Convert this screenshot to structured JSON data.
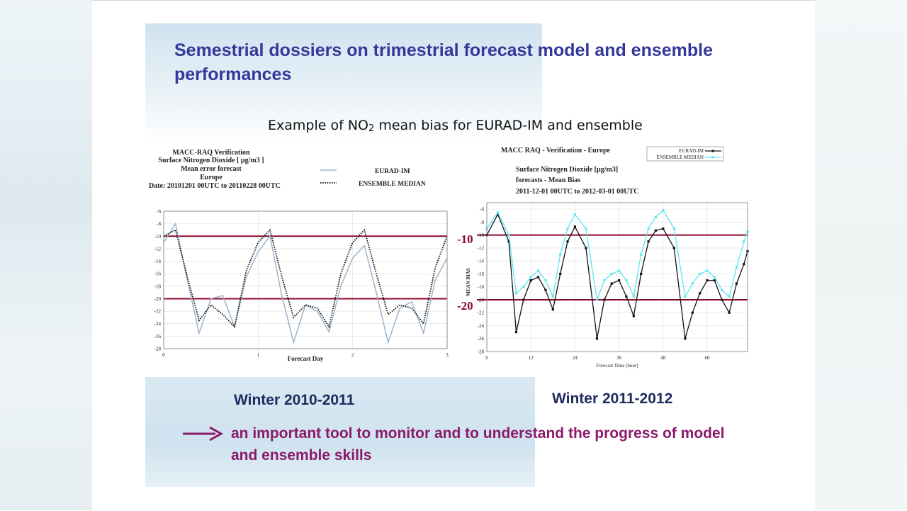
{
  "slide": {
    "title": "Semestrial dossiers on trimestrial forecast model and ensemble performances",
    "subtitle_pre": "Example of NO",
    "subtitle_sub": "2",
    "subtitle_post": " mean bias for EURAD-IM and ensemble",
    "label_left": "Winter 2010-2011",
    "label_right": "Winter 2011-2012",
    "conclusion": "an important tool to monitor and to understand the progress of model and ensemble skills",
    "colors": {
      "title": "#34389a",
      "conclusion": "#8b1a6b",
      "threshold": "#8b0a2a",
      "label": "#1e2a5e"
    }
  },
  "chart_data": [
    {
      "type": "line",
      "header_lines": [
        "MACC-RAQ Verification",
        "Surface Nitrogen Dioxide [ µg/m3 ]",
        "Mean error forecast",
        "Europe",
        "Date: 20101201 00UTC to 20110228 00UTC"
      ],
      "xlabel": "Forecast Day",
      "ylabel": "",
      "xlim": [
        0,
        3
      ],
      "ylim": [
        -28,
        -6
      ],
      "xticks": [
        0,
        1,
        2,
        3
      ],
      "yticks": [
        -6,
        -8,
        -10,
        -12,
        -14,
        -16,
        -18,
        -20,
        -22,
        -24,
        -26,
        -28
      ],
      "series": [
        {
          "name": "EURAD-IM",
          "style": "solid",
          "color": "#9ab4cc",
          "x": [
            0,
            0.125,
            0.25,
            0.375,
            0.5,
            0.625,
            0.75,
            0.875,
            1,
            1.125,
            1.25,
            1.375,
            1.5,
            1.625,
            1.75,
            1.875,
            2,
            2.125,
            2.25,
            2.375,
            2.5,
            2.625,
            2.75,
            2.875,
            3
          ],
          "y": [
            -11,
            -8,
            -17,
            -25.5,
            -20,
            -19.5,
            -24.5,
            -16.5,
            -12.5,
            -10,
            -19.5,
            -27,
            -21,
            -22,
            -25.3,
            -18,
            -13.5,
            -11.5,
            -19,
            -27,
            -21.5,
            -20.5,
            -25.5,
            -17,
            -13.5
          ]
        },
        {
          "name": "ENSEMBLE MEDIAN",
          "style": "dotted",
          "color": "#111111",
          "x": [
            0,
            0.125,
            0.25,
            0.375,
            0.5,
            0.625,
            0.75,
            0.875,
            1,
            1.125,
            1.25,
            1.375,
            1.5,
            1.625,
            1.75,
            1.875,
            2,
            2.125,
            2.25,
            2.375,
            2.5,
            2.625,
            2.75,
            2.875,
            3
          ],
          "y": [
            -10,
            -9,
            -16.5,
            -23.5,
            -21,
            -22.5,
            -24.5,
            -15.5,
            -11,
            -9,
            -16.5,
            -23,
            -21,
            -21.5,
            -24.5,
            -16,
            -11,
            -9,
            -16,
            -22.5,
            -21,
            -21.5,
            -24,
            -15,
            -10
          ]
        }
      ],
      "reference_lines": [
        -10,
        -20
      ],
      "legend": "top-right"
    },
    {
      "type": "line",
      "header_top": "MACC RAQ - Verification - Europe",
      "header_lines": [
        "Surface Nitrogen Dioxide [µg/m3]",
        "forecasts - Mean Bias",
        "2011-12-01 00UTC to 2012-03-01 00UTC"
      ],
      "xlabel": "Forecast Time (hour)",
      "ylabel": "MEAN BIAS",
      "xlim": [
        0,
        71
      ],
      "ylim": [
        -28,
        -5
      ],
      "xticks": [
        0,
        12,
        24,
        36,
        48,
        60
      ],
      "yticks": [
        -6,
        -8,
        -10,
        -12,
        -14,
        -16,
        -18,
        -20,
        -22,
        -24,
        -26,
        -28
      ],
      "series": [
        {
          "name": "EURAD-IM",
          "color": "#111111",
          "x": [
            0,
            3,
            6,
            8,
            10,
            12,
            14,
            16,
            18,
            20,
            22,
            24,
            27,
            30,
            32,
            34,
            36,
            38,
            40,
            42,
            44,
            46,
            48,
            51,
            54,
            56,
            58,
            60,
            62,
            64,
            66,
            68,
            70,
            71
          ],
          "y": [
            -10,
            -6.8,
            -11,
            -25,
            -20,
            -17,
            -16.5,
            -18.5,
            -21.5,
            -16,
            -11,
            -8.7,
            -12,
            -26,
            -20,
            -17.5,
            -17,
            -19.5,
            -22.5,
            -16,
            -11,
            -9.3,
            -9,
            -12,
            -26,
            -22,
            -19,
            -17,
            -17,
            -20,
            -22,
            -17.5,
            -14.5,
            -12.5
          ]
        },
        {
          "name": "ENSEMBLE MEDIAN",
          "color": "#5ee6ef",
          "x": [
            0,
            3,
            6,
            8,
            10,
            12,
            14,
            16,
            18,
            20,
            22,
            24,
            27,
            30,
            32,
            34,
            36,
            38,
            40,
            42,
            44,
            46,
            48,
            51,
            54,
            56,
            58,
            60,
            62,
            64,
            66,
            68,
            70,
            71
          ],
          "y": [
            -9,
            -6.5,
            -10,
            -19,
            -18,
            -16.5,
            -15.5,
            -17,
            -19.5,
            -13,
            -9,
            -6.8,
            -9,
            -20,
            -17,
            -16,
            -15.5,
            -17,
            -19.5,
            -13,
            -9,
            -7.2,
            -6.2,
            -9,
            -19.5,
            -17.5,
            -16,
            -15.5,
            -16.5,
            -18.5,
            -19.5,
            -15,
            -11,
            -9.5
          ]
        }
      ],
      "reference_lines": [
        -10,
        -20
      ],
      "reference_labels": [
        "-10",
        "-20"
      ],
      "legend": "top-right"
    }
  ]
}
